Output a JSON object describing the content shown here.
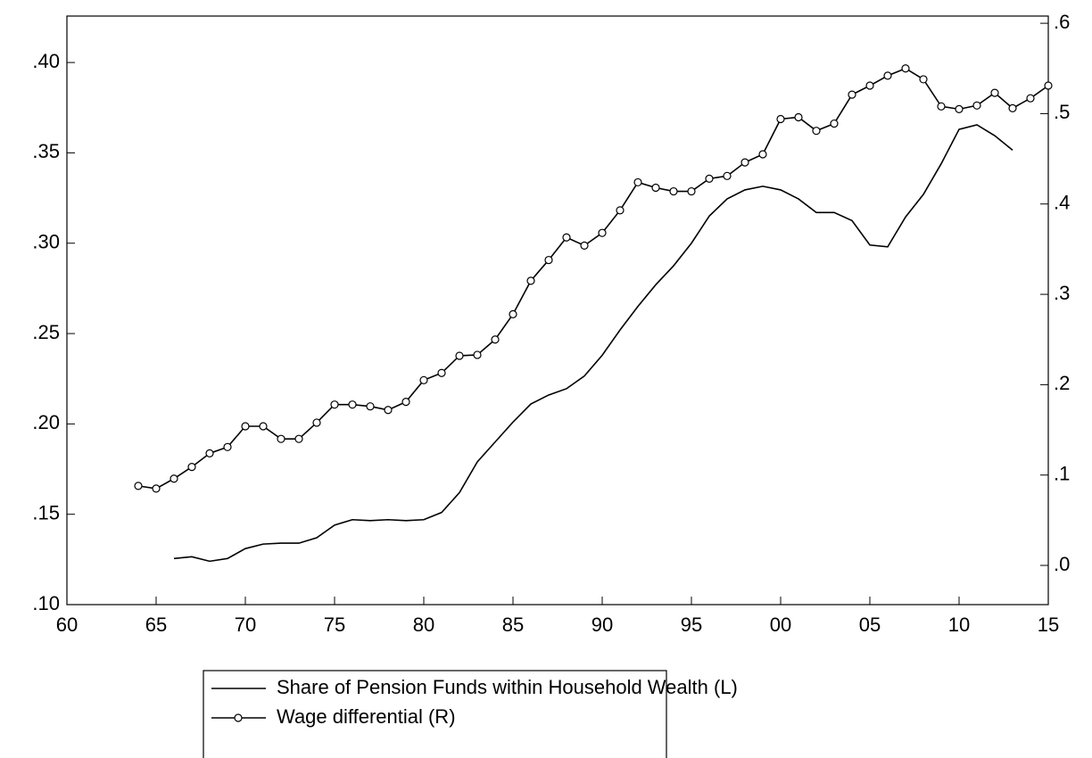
{
  "chart_data": {
    "type": "line",
    "x": [
      1964,
      1965,
      1966,
      1967,
      1968,
      1969,
      1970,
      1971,
      1972,
      1973,
      1974,
      1975,
      1976,
      1977,
      1978,
      1979,
      1980,
      1981,
      1982,
      1983,
      1984,
      1985,
      1986,
      1987,
      1988,
      1989,
      1990,
      1991,
      1992,
      1993,
      1994,
      1995,
      1996,
      1997,
      1998,
      1999,
      2000,
      2001,
      2002,
      2003,
      2004,
      2005,
      2006,
      2007,
      2008,
      2009,
      2010,
      2011,
      2012,
      2013,
      2014,
      2015
    ],
    "series": [
      {
        "name": "Share of Pension Funds within Household Wealth (L)",
        "color": "#000000",
        "marker": false,
        "values": [
          null,
          null,
          0.1255,
          0.1265,
          0.124,
          0.1255,
          0.131,
          0.1335,
          0.134,
          0.134,
          0.137,
          0.144,
          0.147,
          0.1465,
          0.147,
          0.1465,
          0.147,
          0.151,
          0.162,
          0.179,
          0.19,
          0.201,
          0.211,
          0.216,
          0.2195,
          0.2265,
          0.238,
          0.252,
          0.265,
          0.277,
          0.2875,
          0.3,
          0.315,
          0.3245,
          0.3295,
          0.3315,
          0.3295,
          0.3245,
          0.317,
          0.317,
          0.3125,
          0.299,
          0.298,
          0.3145,
          0.327,
          0.344,
          0.363,
          0.3655,
          0.3595,
          0.3515,
          null,
          null
        ]
      },
      {
        "name": "Wage differential (R)",
        "color": "#000000",
        "marker": true,
        "axis": "y2",
        "values": [
          0.088,
          0.085,
          0.096,
          0.109,
          0.124,
          0.131,
          0.154,
          0.154,
          0.14,
          0.14,
          0.158,
          0.178,
          0.178,
          0.176,
          0.172,
          0.181,
          0.205,
          0.213,
          0.232,
          0.233,
          0.25,
          0.278,
          0.315,
          0.338,
          0.363,
          0.354,
          0.368,
          0.393,
          0.424,
          0.418,
          0.414,
          0.414,
          0.428,
          0.431,
          0.446,
          0.455,
          0.494,
          0.496,
          0.481,
          0.489,
          0.521,
          0.531,
          0.542,
          0.55,
          0.538,
          0.508,
          0.505,
          0.509,
          0.523,
          0.506,
          0.517,
          0.531
        ]
      }
    ],
    "xlim": [
      1960,
      2015
    ],
    "xticks": [
      {
        "value": 1960,
        "label": "60"
      },
      {
        "value": 1965,
        "label": "65"
      },
      {
        "value": 1970,
        "label": "70"
      },
      {
        "value": 1975,
        "label": "75"
      },
      {
        "value": 1980,
        "label": "80"
      },
      {
        "value": 1985,
        "label": "85"
      },
      {
        "value": 1990,
        "label": "90"
      },
      {
        "value": 1995,
        "label": "95"
      },
      {
        "value": 2000,
        "label": "00"
      },
      {
        "value": 2005,
        "label": "05"
      },
      {
        "value": 2010,
        "label": "10"
      },
      {
        "value": 2015,
        "label": "15"
      }
    ],
    "ylim": [
      0.1,
      0.4257
    ],
    "yticks": [
      {
        "value": 0.1,
        "label": ".10"
      },
      {
        "value": 0.15,
        "label": ".15"
      },
      {
        "value": 0.2,
        "label": ".20"
      },
      {
        "value": 0.25,
        "label": ".25"
      },
      {
        "value": 0.3,
        "label": ".30"
      },
      {
        "value": 0.35,
        "label": ".35"
      },
      {
        "value": 0.4,
        "label": ".40"
      }
    ],
    "y2lim": [
      -0.0434,
      0.608
    ],
    "y2ticks": [
      {
        "value": 0,
        "label": ".0"
      },
      {
        "value": 0.1,
        "label": ".1"
      },
      {
        "value": 0.2,
        "label": ".2"
      },
      {
        "value": 0.3,
        "label": ".3"
      },
      {
        "value": 0.4,
        "label": ".4"
      },
      {
        "value": 0.5,
        "label": ".5"
      },
      {
        "value": 0.6,
        "label": ".6"
      }
    ],
    "legend": "bottom"
  }
}
